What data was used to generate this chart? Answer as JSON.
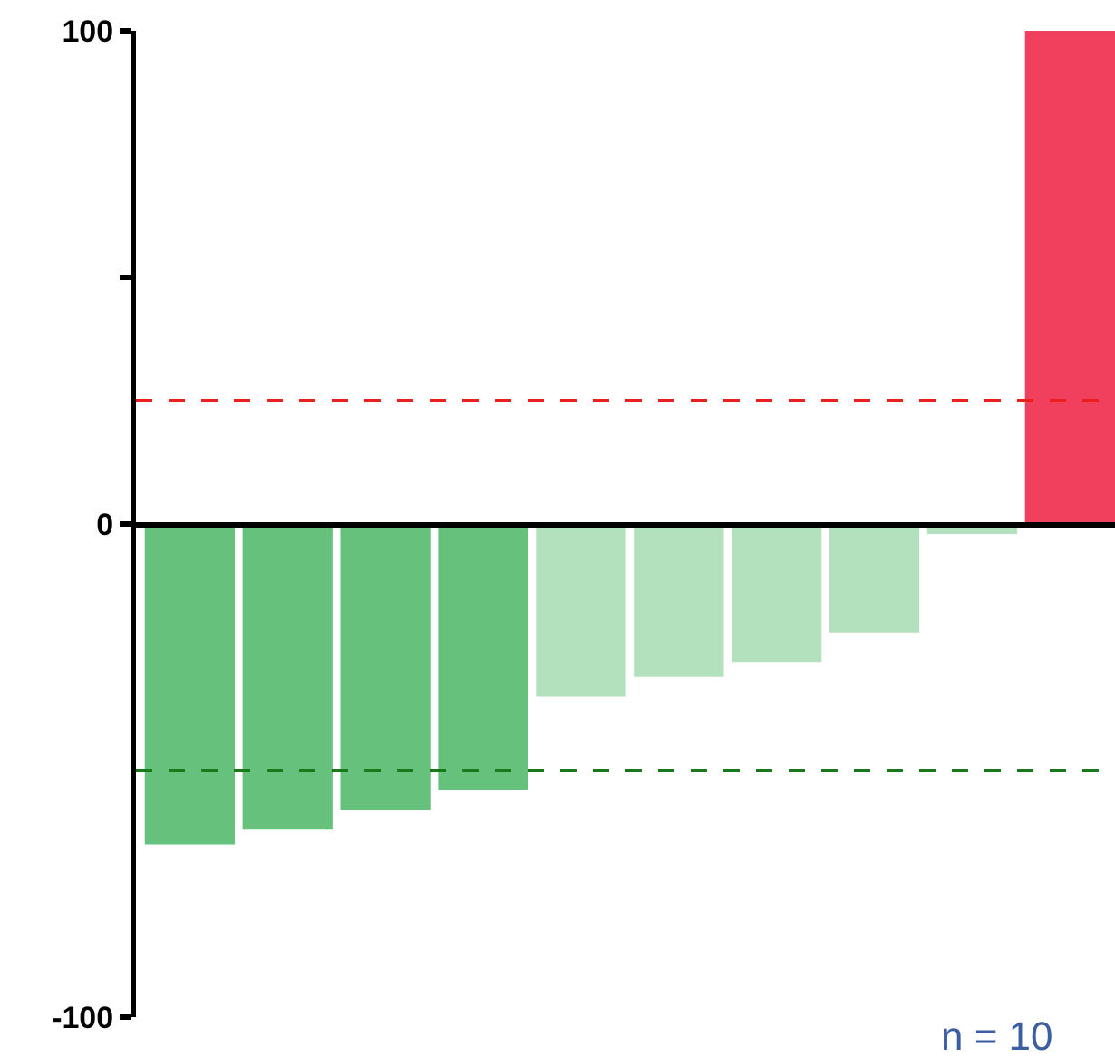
{
  "chart_data": {
    "type": "bar",
    "categories": [
      null,
      null,
      null,
      null,
      null,
      null,
      null,
      null,
      null,
      null
    ],
    "values": [
      -65,
      -62,
      -58,
      -54,
      -35,
      -31,
      -28,
      -22,
      -2,
      100
    ],
    "colors": [
      "#66c17c",
      "#66c17c",
      "#66c17c",
      "#66c17c",
      "#b3e0bd",
      "#b3e0bd",
      "#b3e0bd",
      "#b3e0bd",
      "#b3e0bd",
      "#f0405e"
    ],
    "ylim": [
      -100,
      100
    ],
    "yticks": [
      -100,
      0,
      {
        "value": 50,
        "label": null
      },
      100
    ],
    "ref_lines": [
      {
        "axis": "y",
        "value": 25,
        "color": "#e8201f",
        "line_style": "dashed"
      },
      {
        "axis": "y",
        "value": -50,
        "color": "#1a7a1a",
        "line_style": "dashed"
      }
    ],
    "annotations": [
      "n = 10"
    ],
    "legend": false
  }
}
